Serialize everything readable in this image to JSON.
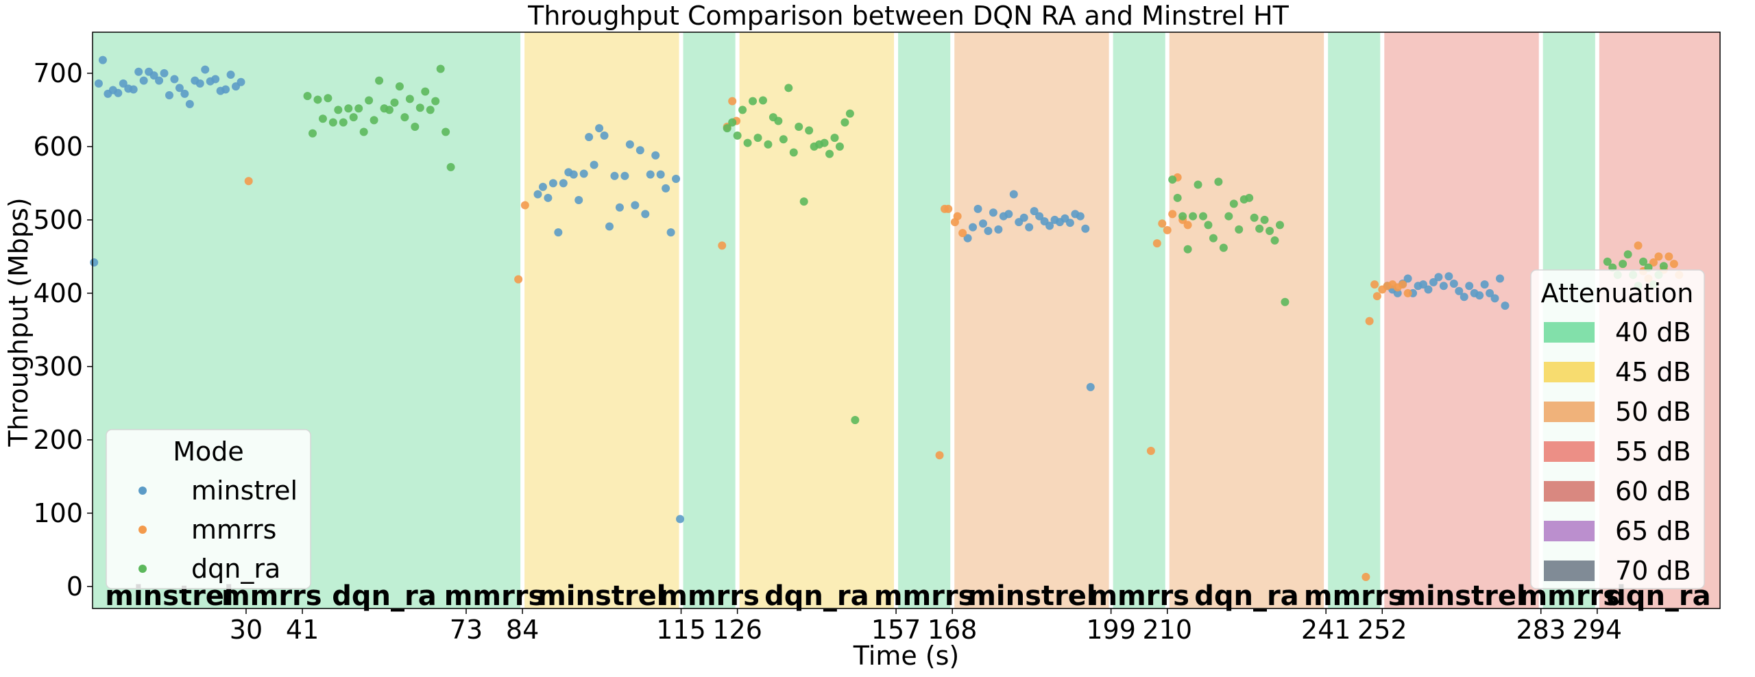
{
  "chart_data": {
    "type": "scatter",
    "title": "Throughput Comparison between DQN RA and Minstrel HT",
    "xlabel": "Time (s)",
    "ylabel": "Throughput (Mbps)",
    "xlim": [
      0,
      318
    ],
    "ylim": [
      -30,
      756
    ],
    "x_ticks": [
      30,
      41,
      73,
      84,
      115,
      126,
      157,
      168,
      199,
      210,
      241,
      252,
      283,
      294
    ],
    "y_ticks": [
      0,
      100,
      200,
      300,
      400,
      500,
      600,
      700
    ],
    "grid": false,
    "attenuation_legend": {
      "title": "Attenuation",
      "placement": "right",
      "entries": [
        {
          "label": "40 dB",
          "color": "#82e0aa"
        },
        {
          "label": "45 dB",
          "color": "#f7dc6f"
        },
        {
          "label": "50 dB",
          "color": "#f0b27a"
        },
        {
          "label": "55 dB",
          "color": "#ec8f86"
        },
        {
          "label": "60 dB",
          "color": "#d98880"
        },
        {
          "label": "65 dB",
          "color": "#bb8fce"
        },
        {
          "label": "70 dB",
          "color": "#808b96"
        }
      ]
    },
    "attenuation_bands": [
      {
        "start": 0,
        "end": 84,
        "color": "#82e0aa"
      },
      {
        "start": 84,
        "end": 115,
        "color": "#f7dc6f"
      },
      {
        "start": 115,
        "end": 126,
        "color": "#82e0aa"
      },
      {
        "start": 126,
        "end": 157,
        "color": "#f7dc6f"
      },
      {
        "start": 157,
        "end": 168,
        "color": "#82e0aa"
      },
      {
        "start": 168,
        "end": 199,
        "color": "#f0b27a"
      },
      {
        "start": 199,
        "end": 210,
        "color": "#82e0aa"
      },
      {
        "start": 210,
        "end": 241,
        "color": "#f0b27a"
      },
      {
        "start": 241,
        "end": 252,
        "color": "#82e0aa"
      },
      {
        "start": 252,
        "end": 283,
        "color": "#ec8f86"
      },
      {
        "start": 283,
        "end": 294,
        "color": "#82e0aa"
      },
      {
        "start": 294,
        "end": 318,
        "color": "#ec8f86"
      }
    ],
    "mode_legend": {
      "title": "Mode",
      "placement": "lower left",
      "entries": [
        {
          "label": "minstrel",
          "color": "#5b9bc7"
        },
        {
          "label": "mmrrs",
          "color": "#f39a4c"
        },
        {
          "label": "dqn_ra",
          "color": "#5cb85c"
        }
      ]
    },
    "mode_labels": [
      {
        "text": "minstrel",
        "x": 15
      },
      {
        "text": "mmrrs",
        "x": 35
      },
      {
        "text": "dqn_ra",
        "x": 57
      },
      {
        "text": "mmrrs",
        "x": 78.5
      },
      {
        "text": "minstrel",
        "x": 99.5
      },
      {
        "text": "mmrrs",
        "x": 120.5
      },
      {
        "text": "dqn_ra",
        "x": 141.5
      },
      {
        "text": "mmrrs",
        "x": 162.5
      },
      {
        "text": "minstrel",
        "x": 183.5
      },
      {
        "text": "mmrrs",
        "x": 204.5
      },
      {
        "text": "dqn_ra",
        "x": 225.5
      },
      {
        "text": "mmrrs",
        "x": 246.5
      },
      {
        "text": "minstrel",
        "x": 267.5
      },
      {
        "text": "mmrrs",
        "x": 288.5
      },
      {
        "text": "dqn_ra",
        "x": 306
      }
    ],
    "series": [
      {
        "name": "minstrel",
        "color": "#5b9bc7",
        "points": [
          [
            0.3,
            442
          ],
          [
            1.2,
            686
          ],
          [
            2,
            718
          ],
          [
            3,
            672
          ],
          [
            4,
            677
          ],
          [
            5,
            673
          ],
          [
            6,
            686
          ],
          [
            7,
            679
          ],
          [
            8,
            678
          ],
          [
            9,
            702
          ],
          [
            10,
            690
          ],
          [
            11,
            702
          ],
          [
            12,
            697
          ],
          [
            13,
            690
          ],
          [
            14,
            700
          ],
          [
            15,
            670
          ],
          [
            16,
            692
          ],
          [
            17,
            680
          ],
          [
            18,
            672
          ],
          [
            19,
            658
          ],
          [
            20,
            690
          ],
          [
            21,
            686
          ],
          [
            22,
            705
          ],
          [
            23,
            689
          ],
          [
            24,
            692
          ],
          [
            25,
            676
          ],
          [
            26,
            678
          ],
          [
            27,
            698
          ],
          [
            28,
            682
          ],
          [
            29,
            688
          ],
          [
            87,
            535
          ],
          [
            88,
            545
          ],
          [
            89,
            530
          ],
          [
            90,
            550
          ],
          [
            91,
            483
          ],
          [
            92,
            550
          ],
          [
            93,
            565
          ],
          [
            94,
            562
          ],
          [
            95,
            527
          ],
          [
            96,
            563
          ],
          [
            97,
            613
          ],
          [
            98,
            575
          ],
          [
            99,
            625
          ],
          [
            100,
            615
          ],
          [
            101,
            491
          ],
          [
            102,
            560
          ],
          [
            103,
            517
          ],
          [
            104,
            560
          ],
          [
            105,
            603
          ],
          [
            106,
            520
          ],
          [
            107,
            595
          ],
          [
            108,
            508
          ],
          [
            109,
            562
          ],
          [
            110,
            588
          ],
          [
            111,
            562
          ],
          [
            112,
            543
          ],
          [
            113,
            483
          ],
          [
            114,
            556
          ],
          [
            114.8,
            92
          ],
          [
            171,
            475
          ],
          [
            172,
            490
          ],
          [
            173,
            515
          ],
          [
            174,
            495
          ],
          [
            175,
            485
          ],
          [
            176,
            510
          ],
          [
            177,
            487
          ],
          [
            178,
            505
          ],
          [
            179,
            508
          ],
          [
            180,
            535
          ],
          [
            181,
            497
          ],
          [
            182,
            503
          ],
          [
            183,
            490
          ],
          [
            184,
            512
          ],
          [
            185,
            505
          ],
          [
            186,
            498
          ],
          [
            187,
            492
          ],
          [
            188,
            500
          ],
          [
            189,
            497
          ],
          [
            190,
            502
          ],
          [
            191,
            496
          ],
          [
            192,
            508
          ],
          [
            193,
            505
          ],
          [
            194,
            488
          ],
          [
            195,
            272
          ],
          [
            253,
            410
          ],
          [
            254,
            405
          ],
          [
            255,
            400
          ],
          [
            256,
            413
          ],
          [
            257,
            420
          ],
          [
            258,
            400
          ],
          [
            259,
            410
          ],
          [
            260,
            412
          ],
          [
            261,
            405
          ],
          [
            262,
            415
          ],
          [
            263,
            422
          ],
          [
            264,
            410
          ],
          [
            265,
            423
          ],
          [
            266,
            413
          ],
          [
            267,
            403
          ],
          [
            268,
            395
          ],
          [
            269,
            410
          ],
          [
            270,
            400
          ],
          [
            271,
            397
          ],
          [
            272,
            412
          ],
          [
            273,
            400
          ],
          [
            274,
            393
          ],
          [
            275,
            420
          ],
          [
            276,
            383
          ]
        ]
      },
      {
        "name": "mmrrs",
        "color": "#f39a4c",
        "points": [
          [
            30.5,
            553
          ],
          [
            83.2,
            419
          ],
          [
            84.5,
            520
          ],
          [
            123,
            465
          ],
          [
            124,
            627
          ],
          [
            125,
            662
          ],
          [
            125.8,
            635
          ],
          [
            165.5,
            179
          ],
          [
            166.5,
            515
          ],
          [
            167.2,
            515
          ],
          [
            168.5,
            497
          ],
          [
            169,
            505
          ],
          [
            170,
            482
          ],
          [
            206.8,
            185
          ],
          [
            208,
            468
          ],
          [
            209,
            495
          ],
          [
            210,
            486
          ],
          [
            211,
            508
          ],
          [
            212,
            558
          ],
          [
            213,
            500
          ],
          [
            214,
            493
          ],
          [
            248.8,
            13
          ],
          [
            249.5,
            362
          ],
          [
            250.5,
            412
          ],
          [
            251,
            396
          ],
          [
            252,
            405
          ],
          [
            253,
            410
          ],
          [
            254,
            412
          ],
          [
            255,
            408
          ],
          [
            256,
            412
          ],
          [
            257,
            400
          ],
          [
            302,
            465
          ],
          [
            303,
            430
          ],
          [
            304,
            420
          ],
          [
            305,
            442
          ],
          [
            306,
            450
          ],
          [
            307,
            432
          ],
          [
            308,
            450
          ],
          [
            309,
            440
          ],
          [
            310,
            425
          ]
        ]
      },
      {
        "name": "dqn_ra",
        "color": "#5cb85c",
        "points": [
          [
            42,
            669
          ],
          [
            43,
            618
          ],
          [
            44,
            664
          ],
          [
            45,
            638
          ],
          [
            46,
            666
          ],
          [
            47,
            633
          ],
          [
            48,
            650
          ],
          [
            49,
            633
          ],
          [
            50,
            652
          ],
          [
            51,
            640
          ],
          [
            52,
            652
          ],
          [
            53,
            620
          ],
          [
            54,
            663
          ],
          [
            55,
            636
          ],
          [
            56,
            690
          ],
          [
            57,
            652
          ],
          [
            58,
            650
          ],
          [
            59,
            660
          ],
          [
            60,
            682
          ],
          [
            61,
            640
          ],
          [
            62,
            665
          ],
          [
            63,
            627
          ],
          [
            64,
            653
          ],
          [
            65,
            675
          ],
          [
            66,
            650
          ],
          [
            67,
            662
          ],
          [
            68,
            706
          ],
          [
            69,
            620
          ],
          [
            70,
            572
          ],
          [
            124,
            625
          ],
          [
            125,
            633
          ],
          [
            126,
            615
          ],
          [
            127,
            650
          ],
          [
            128,
            605
          ],
          [
            129,
            662
          ],
          [
            130,
            612
          ],
          [
            131,
            663
          ],
          [
            132,
            603
          ],
          [
            133,
            640
          ],
          [
            134,
            635
          ],
          [
            135,
            610
          ],
          [
            136,
            680
          ],
          [
            137,
            592
          ],
          [
            138,
            627
          ],
          [
            139,
            525
          ],
          [
            140,
            622
          ],
          [
            141,
            600
          ],
          [
            142,
            603
          ],
          [
            143,
            605
          ],
          [
            144,
            590
          ],
          [
            145,
            612
          ],
          [
            146,
            600
          ],
          [
            147,
            633
          ],
          [
            148,
            645
          ],
          [
            149,
            227
          ],
          [
            211,
            555
          ],
          [
            212,
            530
          ],
          [
            213,
            505
          ],
          [
            214,
            460
          ],
          [
            215,
            505
          ],
          [
            216,
            548
          ],
          [
            217,
            505
          ],
          [
            218,
            493
          ],
          [
            219,
            475
          ],
          [
            220,
            552
          ],
          [
            221,
            462
          ],
          [
            222,
            505
          ],
          [
            223,
            522
          ],
          [
            224,
            487
          ],
          [
            225,
            528
          ],
          [
            226,
            530
          ],
          [
            227,
            503
          ],
          [
            228,
            488
          ],
          [
            229,
            500
          ],
          [
            230,
            485
          ],
          [
            231,
            472
          ],
          [
            232,
            493
          ],
          [
            233,
            388
          ],
          [
            296,
            443
          ],
          [
            297,
            435
          ],
          [
            298,
            425
          ],
          [
            299,
            440
          ],
          [
            300,
            453
          ],
          [
            301,
            425
          ],
          [
            302,
            410
          ],
          [
            303,
            443
          ],
          [
            304,
            435
          ],
          [
            305,
            412
          ],
          [
            306,
            425
          ],
          [
            307,
            437
          ]
        ]
      }
    ]
  }
}
